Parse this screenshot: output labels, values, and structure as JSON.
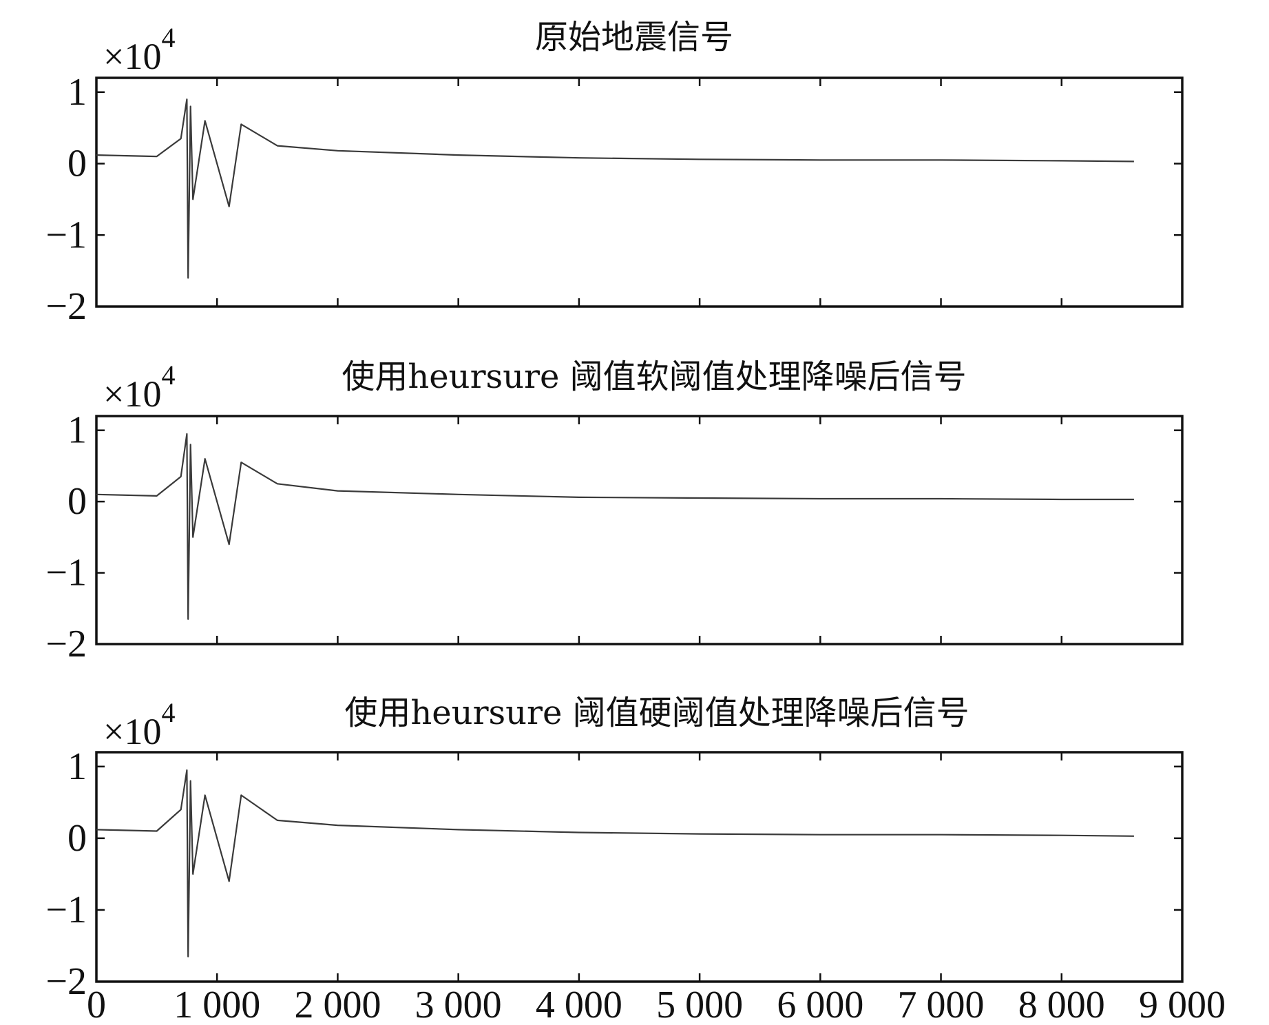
{
  "chart_data": [
    {
      "type": "line",
      "title": "原始地震信号",
      "xlim": [
        0,
        9000
      ],
      "ylim": [
        -2,
        1.2
      ],
      "y_multiplier": "×10",
      "y_multiplier_exponent": "4",
      "y_ticks": [
        1,
        0,
        -1,
        -2
      ],
      "y_tick_labels": [
        "1",
        "0",
        "−1",
        "−2"
      ],
      "x_ticks": [
        0,
        1000,
        2000,
        3000,
        4000,
        5000,
        6000,
        7000,
        8000,
        9000
      ],
      "x_tick_labels": [],
      "grid": false,
      "series": [
        {
          "x": [
            0,
            500,
            700,
            750,
            760,
            780,
            800,
            900,
            1100,
            1200,
            1500,
            2000,
            3000,
            4000,
            5000,
            6000,
            7000,
            8000,
            8600
          ],
          "y": [
            0.12,
            0.1,
            0.35,
            0.9,
            -1.6,
            0.8,
            -0.5,
            0.6,
            -0.6,
            0.55,
            0.25,
            0.18,
            0.12,
            0.08,
            0.06,
            0.05,
            0.05,
            0.04,
            0.03
          ]
        }
      ]
    },
    {
      "type": "line",
      "title": "使用heursure 阈值软阈值处理降噪后信号",
      "xlim": [
        0,
        9000
      ],
      "ylim": [
        -2,
        1.2
      ],
      "y_multiplier": "×10",
      "y_multiplier_exponent": "4",
      "y_ticks": [
        1,
        0,
        -1,
        -2
      ],
      "y_tick_labels": [
        "1",
        "0",
        "−1",
        "−2"
      ],
      "x_ticks": [
        0,
        1000,
        2000,
        3000,
        4000,
        5000,
        6000,
        7000,
        8000,
        9000
      ],
      "x_tick_labels": [],
      "grid": false,
      "series": [
        {
          "x": [
            0,
            500,
            700,
            750,
            760,
            780,
            800,
            900,
            1100,
            1200,
            1500,
            2000,
            3000,
            4000,
            5000,
            6000,
            7000,
            8000,
            8600
          ],
          "y": [
            0.1,
            0.08,
            0.35,
            0.95,
            -1.65,
            0.8,
            -0.5,
            0.6,
            -0.6,
            0.55,
            0.25,
            0.15,
            0.1,
            0.06,
            0.05,
            0.04,
            0.04,
            0.03,
            0.03
          ]
        }
      ]
    },
    {
      "type": "line",
      "title": "使用heursure 阈值硬阈值处理降噪后信号",
      "xlim": [
        0,
        9000
      ],
      "ylim": [
        -2,
        1.2
      ],
      "y_multiplier": "×10",
      "y_multiplier_exponent": "4",
      "y_ticks": [
        1,
        0,
        -1,
        -2
      ],
      "y_tick_labels": [
        "1",
        "0",
        "−1",
        "−2"
      ],
      "x_ticks": [
        0,
        1000,
        2000,
        3000,
        4000,
        5000,
        6000,
        7000,
        8000,
        9000
      ],
      "x_tick_labels": [
        "0",
        "1 000",
        "2 000",
        "3 000",
        "4 000",
        "5 000",
        "6 000",
        "7 000",
        "8 000",
        "9 000"
      ],
      "grid": false,
      "series": [
        {
          "x": [
            0,
            500,
            700,
            750,
            760,
            780,
            800,
            900,
            1100,
            1200,
            1500,
            2000,
            3000,
            4000,
            5000,
            6000,
            7000,
            8000,
            8600
          ],
          "y": [
            0.12,
            0.1,
            0.4,
            0.95,
            -1.65,
            0.8,
            -0.5,
            0.6,
            -0.6,
            0.6,
            0.25,
            0.18,
            0.12,
            0.08,
            0.06,
            0.05,
            0.05,
            0.04,
            0.03
          ]
        }
      ]
    }
  ]
}
